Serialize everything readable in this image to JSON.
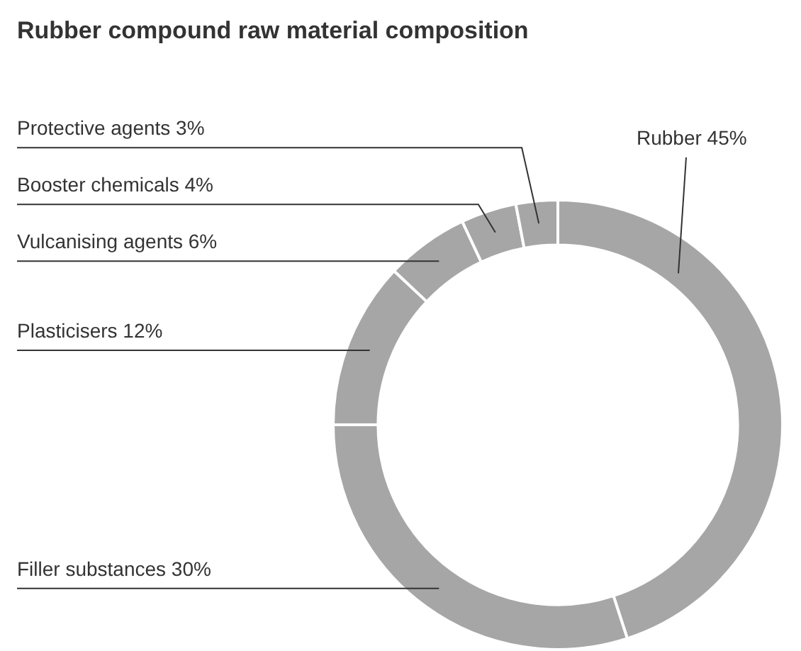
{
  "chart_data": {
    "type": "donut",
    "title": "Rubber compound raw material composition",
    "categories": [
      "Rubber",
      "Filler substances",
      "Plasticisers",
      "Vulcanising agents",
      "Booster chemicals",
      "Protective agents"
    ],
    "values": [
      45,
      30,
      12,
      6,
      4,
      3
    ],
    "value_labels": [
      "45%",
      "30%",
      "12%",
      "6%",
      "4%",
      "3%"
    ],
    "colors": [
      "#a6a6a6",
      "#a6a6a6",
      "#a6a6a6",
      "#a6a6a6",
      "#a6a6a6",
      "#a6a6a6"
    ],
    "legend": false
  }
}
